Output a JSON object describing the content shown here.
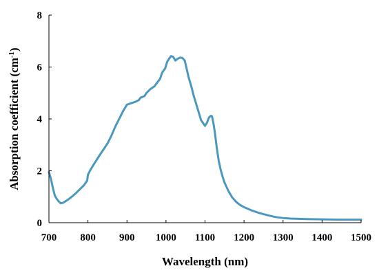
{
  "chart_data": {
    "type": "line",
    "title": "",
    "xlabel": "Wavelength (nm)",
    "ylabel_main": "Absorption coefficient (cm",
    "ylabel_sup": "-1",
    "ylabel_close": ")",
    "xlim": [
      700,
      1500
    ],
    "ylim": [
      0,
      8
    ],
    "xticks": [
      700,
      800,
      900,
      1000,
      1100,
      1200,
      1300,
      1400,
      1500
    ],
    "yticks": [
      0,
      2,
      4,
      6,
      8
    ],
    "xtick_labels": [
      "700",
      "800",
      "900",
      "1000",
      "1100",
      "1200",
      "1300",
      "1400",
      "1500"
    ],
    "ytick_labels": [
      "0",
      "2",
      "4",
      "6",
      "8"
    ],
    "grid": false,
    "series": [
      {
        "color": "#4a97bf",
        "x": [
          700,
          705,
          710,
          715,
          720,
          725,
          730,
          735,
          740,
          750,
          760,
          770,
          780,
          790,
          798,
          800,
          805,
          815,
          830,
          850,
          860,
          870,
          880,
          890,
          900,
          910,
          920,
          930,
          935,
          945,
          950,
          960,
          970,
          980,
          985,
          990,
          998,
          1003,
          1008,
          1013,
          1018,
          1024,
          1030,
          1036,
          1042,
          1048,
          1052,
          1058,
          1065,
          1070,
          1080,
          1090,
          1100,
          1105,
          1110,
          1115,
          1118,
          1122,
          1126,
          1130,
          1135,
          1140,
          1145,
          1150,
          1160,
          1170,
          1180,
          1190,
          1200,
          1220,
          1240,
          1260,
          1280,
          1300,
          1320,
          1340,
          1360,
          1400,
          1440,
          1470,
          1500
        ],
        "y": [
          1.95,
          1.7,
          1.35,
          1.05,
          0.92,
          0.82,
          0.75,
          0.76,
          0.8,
          0.9,
          1.02,
          1.15,
          1.3,
          1.45,
          1.62,
          1.85,
          2.0,
          2.25,
          2.6,
          3.05,
          3.35,
          3.7,
          4.0,
          4.3,
          4.55,
          4.6,
          4.65,
          4.72,
          4.82,
          4.88,
          5.0,
          5.15,
          5.25,
          5.45,
          5.55,
          5.78,
          5.95,
          6.2,
          6.32,
          6.42,
          6.4,
          6.25,
          6.32,
          6.36,
          6.35,
          6.25,
          6.0,
          5.6,
          5.25,
          4.95,
          4.45,
          3.95,
          3.73,
          3.85,
          4.05,
          4.12,
          4.1,
          3.8,
          3.4,
          2.9,
          2.4,
          2.05,
          1.78,
          1.55,
          1.22,
          0.97,
          0.8,
          0.68,
          0.6,
          0.47,
          0.37,
          0.29,
          0.22,
          0.18,
          0.16,
          0.15,
          0.14,
          0.13,
          0.12,
          0.12,
          0.12
        ]
      }
    ]
  }
}
